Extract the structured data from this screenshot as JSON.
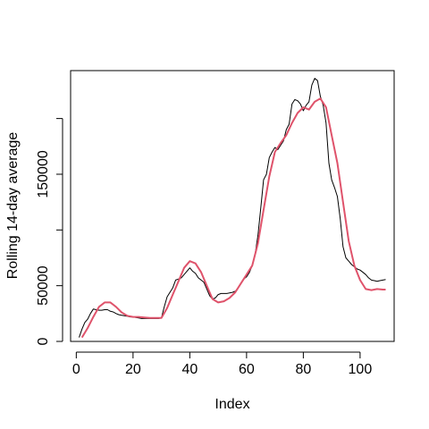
{
  "chart_data": {
    "type": "line",
    "title": "",
    "xlabel": "Index",
    "ylabel": "Rolling 14-day average",
    "xlim": [
      -2,
      112
    ],
    "ylim": [
      0,
      243000
    ],
    "xticks": [
      0,
      20,
      40,
      60,
      80,
      100
    ],
    "yticks": [
      0,
      50000,
      150000
    ],
    "xtick_labels": [
      "0",
      "20",
      "40",
      "60",
      "80",
      "100"
    ],
    "ytick_labels": [
      "0",
      "50000",
      "150000"
    ],
    "grid": false,
    "legend": null,
    "series": [
      {
        "color": "#000000",
        "width": 1,
        "x": [
          1,
          2,
          3,
          4,
          5,
          6,
          7,
          8,
          9,
          10,
          11,
          12,
          13,
          14,
          15,
          16,
          17,
          18,
          19,
          20,
          21,
          22,
          23,
          24,
          25,
          26,
          27,
          28,
          29,
          30,
          31,
          32,
          33,
          34,
          35,
          36,
          37,
          38,
          39,
          40,
          41,
          42,
          43,
          44,
          45,
          46,
          47,
          48,
          49,
          50,
          51,
          52,
          53,
          54,
          55,
          56,
          57,
          58,
          59,
          60,
          61,
          62,
          63,
          64,
          65,
          66,
          67,
          68,
          69,
          70,
          71,
          72,
          73,
          74,
          75,
          76,
          77,
          78,
          79,
          80,
          81,
          82,
          83,
          84,
          85,
          86,
          87,
          88,
          89,
          90,
          91,
          92,
          93,
          94,
          95,
          96,
          97,
          98,
          99,
          100,
          101,
          102,
          103,
          104,
          105,
          106,
          107,
          108,
          109
        ],
        "y": [
          3500,
          11000,
          17000,
          20000,
          25000,
          29000,
          28500,
          28000,
          28000,
          28500,
          28500,
          27000,
          26500,
          25000,
          24000,
          23500,
          23000,
          22500,
          22000,
          22000,
          21500,
          21000,
          20500,
          20500,
          20500,
          20500,
          20500,
          20500,
          20500,
          21000,
          31000,
          40000,
          44000,
          48000,
          55000,
          56000,
          57000,
          60000,
          63000,
          66000,
          63000,
          61000,
          57000,
          55000,
          53000,
          47000,
          41000,
          38000,
          39000,
          42000,
          43000,
          43000,
          43000,
          43500,
          44000,
          45000,
          48000,
          52000,
          56000,
          58000,
          62000,
          68000,
          78000,
          95000,
          120000,
          145000,
          150000,
          165000,
          170000,
          174000,
          172000,
          176000,
          180000,
          190000,
          195000,
          213000,
          217000,
          216000,
          213000,
          207000,
          212000,
          215000,
          230000,
          236000,
          234000,
          220000,
          212000,
          196000,
          160000,
          145000,
          138000,
          130000,
          110000,
          85000,
          75000,
          72000,
          69000,
          67000,
          65000,
          64000,
          62000,
          60000,
          57000,
          55000,
          54500,
          54000,
          54500,
          55000,
          55500
        ],
        "x_override": [
          1,
          2,
          3,
          4,
          5,
          6,
          7,
          8,
          9,
          10,
          11,
          12,
          13,
          14,
          15,
          16,
          17,
          18,
          19,
          20,
          21,
          22,
          23,
          24,
          25,
          26,
          27,
          28,
          29,
          30,
          31,
          32,
          33,
          34,
          35,
          36,
          37,
          38,
          39,
          40,
          41,
          42,
          43,
          44,
          45,
          46,
          47,
          48,
          49,
          50,
          51,
          52,
          53,
          54,
          55,
          56,
          57,
          58,
          59,
          60,
          61,
          62,
          63,
          64,
          65,
          66,
          67,
          68,
          69,
          70,
          71,
          72,
          73,
          74,
          75,
          76,
          77,
          78,
          79,
          80,
          81,
          82,
          83,
          84,
          85,
          86,
          87,
          88,
          89,
          90,
          91,
          92,
          93,
          94,
          95,
          96,
          97,
          98,
          99,
          100,
          101,
          102,
          103,
          104,
          105,
          106,
          107,
          108,
          109
        ]
      },
      {
        "color": "#df536b",
        "width": 2,
        "x": [
          2,
          4,
          6,
          8,
          10,
          12,
          14,
          16,
          18,
          20,
          22,
          24,
          26,
          28,
          30,
          32,
          34,
          36,
          38,
          40,
          42,
          44,
          46,
          48,
          50,
          52,
          54,
          56,
          58,
          60,
          62,
          64,
          66,
          68,
          70,
          72,
          74,
          76,
          78,
          80,
          82,
          84,
          86,
          88,
          90,
          92,
          94,
          96,
          98,
          100,
          102,
          104,
          106,
          108,
          109
        ],
        "y": [
          3500,
          12000,
          22000,
          31000,
          35000,
          35000,
          31000,
          26000,
          23000,
          22000,
          22000,
          21500,
          21000,
          21000,
          21000,
          30000,
          42000,
          54000,
          66000,
          72000,
          70000,
          62000,
          50000,
          38000,
          35000,
          36000,
          39000,
          44000,
          52000,
          60000,
          68000,
          88000,
          118000,
          148000,
          170000,
          178000,
          185000,
          196000,
          205000,
          210000,
          208000,
          215000,
          218000,
          210000,
          185000,
          160000,
          125000,
          90000,
          68000,
          55000,
          47000,
          46000,
          47000,
          46500,
          46500
        ]
      }
    ]
  }
}
